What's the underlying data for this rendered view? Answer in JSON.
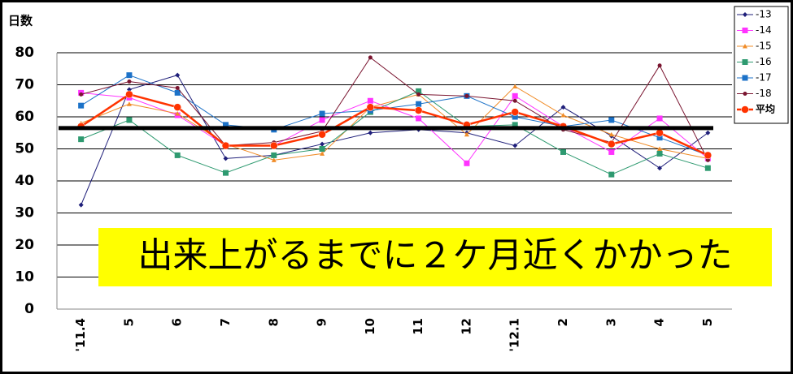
{
  "chart_data": {
    "type": "line",
    "y_label": "日数",
    "categories": [
      "'11.4",
      "5",
      "6",
      "7",
      "8",
      "9",
      "10",
      "11",
      "12",
      "'12.1",
      "2",
      "3",
      "4",
      "5"
    ],
    "series": [
      {
        "name": "-13",
        "color": "#1f1f7a",
        "marker": "diamond",
        "values": [
          32.5,
          68.5,
          73,
          47,
          48,
          51.5,
          55,
          56,
          55,
          51,
          63,
          54,
          44,
          55
        ]
      },
      {
        "name": "-14",
        "color": "#ff33ff",
        "marker": "square",
        "values": [
          67.5,
          66,
          60.5,
          51,
          51,
          59,
          65,
          59.5,
          45.5,
          66.5,
          57,
          49,
          59.5,
          47
        ]
      },
      {
        "name": "-15",
        "color": "#f08c28",
        "marker": "triangle",
        "values": [
          58,
          64,
          61,
          51.5,
          46.5,
          48.5,
          63,
          67,
          54.5,
          69.5,
          60.5,
          54.5,
          50,
          47
        ]
      },
      {
        "name": "-16",
        "color": "#2e9a70",
        "marker": "square",
        "values": [
          53,
          59,
          48,
          42.5,
          48,
          50,
          61.5,
          68,
          57,
          57.5,
          49,
          42,
          48.5,
          44
        ]
      },
      {
        "name": "-17",
        "color": "#1c72c8",
        "marker": "square",
        "values": [
          63.5,
          73,
          67.5,
          57.5,
          56,
          61,
          62,
          64,
          66.5,
          60,
          57,
          59,
          53.5,
          48
        ]
      },
      {
        "name": "-18",
        "color": "#7a1530",
        "marker": "circle",
        "values": [
          67,
          71,
          69,
          51,
          52,
          55.5,
          78.5,
          67,
          66.5,
          65,
          56,
          52,
          76,
          46.5
        ]
      },
      {
        "name": "平均",
        "color": "#ff3300",
        "marker": "bigcircle",
        "values": [
          57,
          67,
          63,
          51,
          51,
          54.5,
          63,
          62,
          57.5,
          61.5,
          57,
          51.5,
          55,
          48
        ]
      }
    ],
    "reference_line": 56.5,
    "annotation": "出来上がるまでに２ケ月近くかかった",
    "ylim": [
      0,
      80
    ],
    "yticks": [
      0,
      10,
      20,
      30,
      40,
      50,
      60,
      70,
      80
    ],
    "grid": true
  }
}
